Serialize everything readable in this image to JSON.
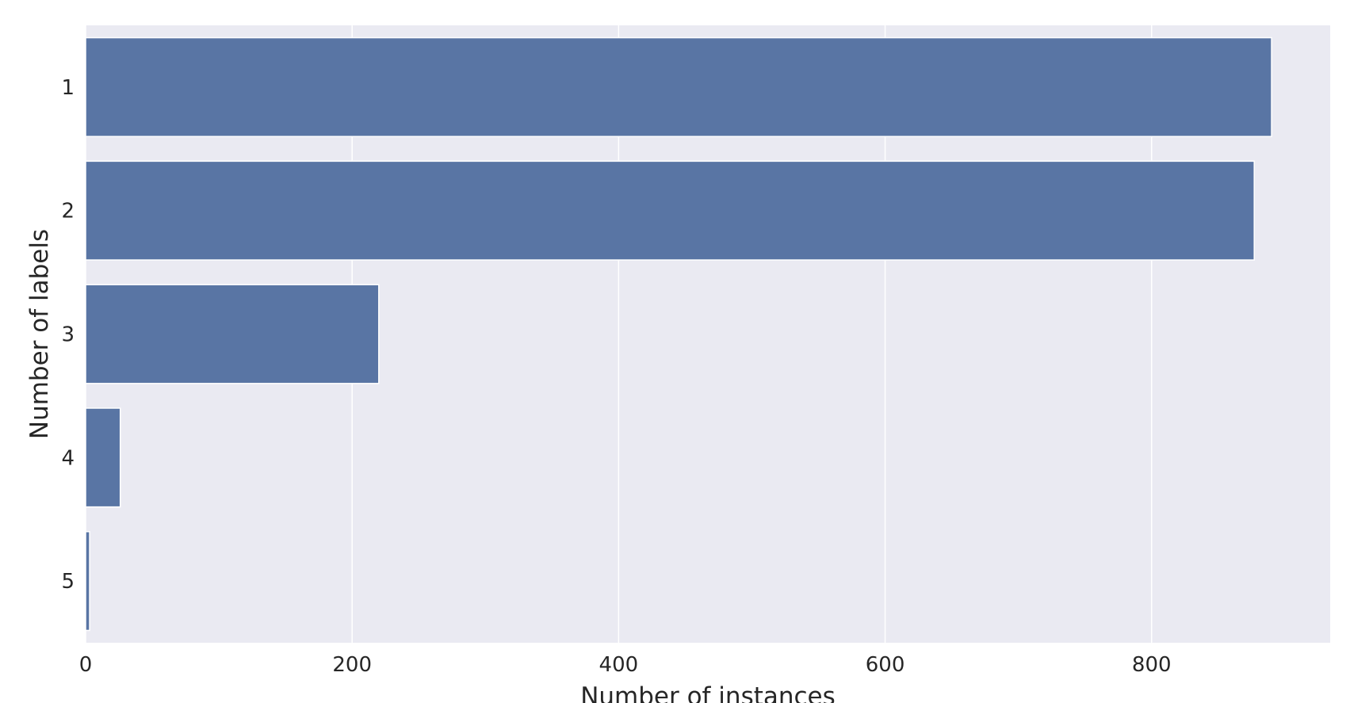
{
  "chart_data": {
    "type": "bar",
    "orientation": "horizontal",
    "title": "",
    "xlabel": "Number of instances",
    "ylabel": "Number of labels",
    "categories": [
      "1",
      "2",
      "3",
      "4",
      "5"
    ],
    "values": [
      890,
      877,
      220,
      26,
      3
    ],
    "xlim": [
      0,
      934
    ],
    "xticks": [
      0,
      200,
      400,
      600,
      800
    ],
    "grid": true,
    "bar_color": "#5975a4",
    "background_color": "#eaeaf2",
    "grid_color": "#ffffff"
  }
}
